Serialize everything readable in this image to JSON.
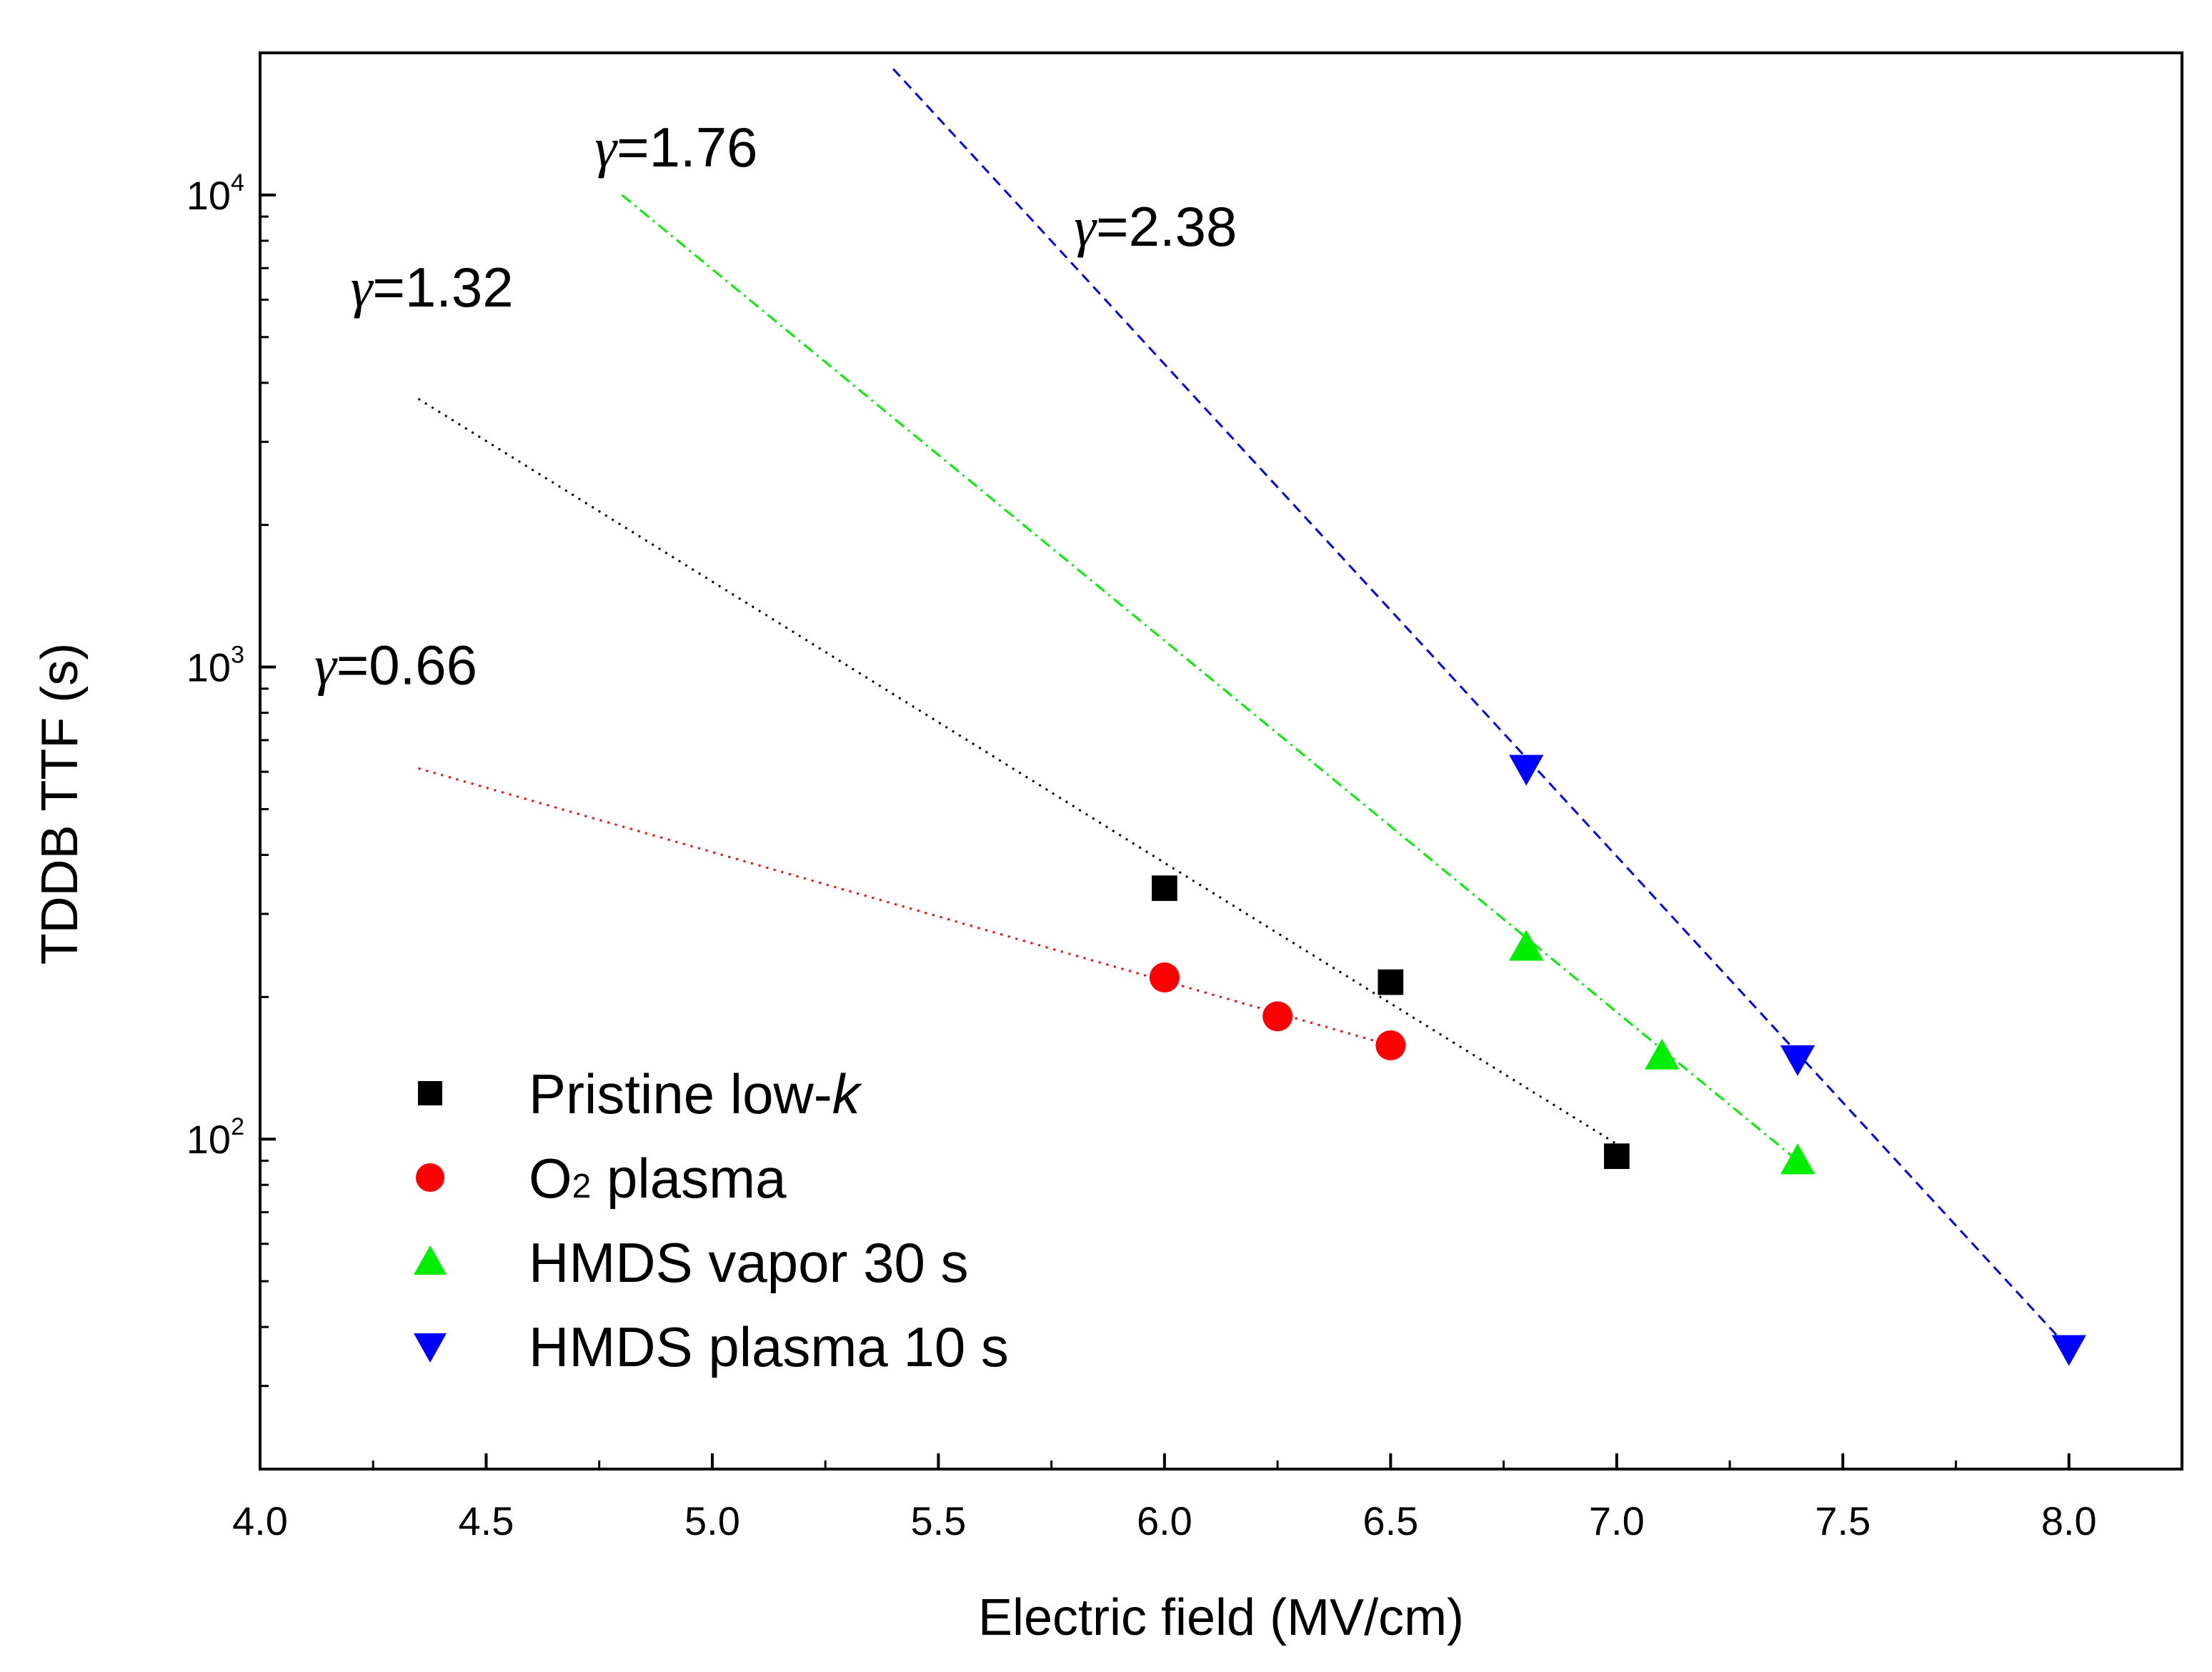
{
  "chart_data": {
    "type": "scatter",
    "title": "",
    "xlabel": "Electric field (MV/cm)",
    "ylabel": "TDDB TTF (s)",
    "xlim": [
      4.0,
      8.25
    ],
    "ylim": [
      20,
      20000
    ],
    "yscale": "log",
    "grid": false,
    "legend_position": "bottom-left",
    "x_ticks": [
      "4.0",
      "4.5",
      "5.0",
      "5.5",
      "6.0",
      "6.5",
      "7.0",
      "7.5",
      "8.0"
    ],
    "y_ticks": [
      {
        "value": 100,
        "base": "10",
        "exp": "2"
      },
      {
        "value": 1000,
        "base": "10",
        "exp": "3"
      },
      {
        "value": 10000,
        "base": "10",
        "exp": "4"
      }
    ],
    "series": [
      {
        "name": "Pristine low-",
        "name_italic": "k",
        "marker": "square",
        "color": "#000000",
        "line_style": "dotted",
        "x": [
          6.0,
          6.5,
          7.0
        ],
        "y": [
          340,
          215,
          92
        ],
        "fit": {
          "x": [
            4.35,
            7.02
          ],
          "y": [
            3700,
            95
          ]
        },
        "annotation": {
          "symbol": "γ",
          "text": "=1.32",
          "at_x": 4.2,
          "at_y": 5800
        }
      },
      {
        "name": "O",
        "name_sub": "2",
        "name_rest": " plasma",
        "marker": "circle",
        "color": "#ff0000",
        "line_style": "dotted",
        "x": [
          6.0,
          6.25,
          6.5
        ],
        "y": [
          220,
          182,
          158
        ],
        "fit": {
          "x": [
            4.35,
            6.5
          ],
          "y": [
            610,
            158
          ]
        },
        "annotation": {
          "symbol": "γ",
          "text": "=0.66",
          "at_x": 4.12,
          "at_y": 920
        }
      },
      {
        "name": "HMDS vapor 30 s",
        "marker": "triangle-up",
        "color": "#00ee00",
        "line_style": "dashdot",
        "x": [
          6.8,
          7.1,
          7.4
        ],
        "y": [
          255,
          150,
          90
        ],
        "fit": {
          "x": [
            4.8,
            7.4
          ],
          "y": [
            10000,
            90
          ]
        },
        "annotation": {
          "symbol": "γ",
          "text": "=1.76",
          "at_x": 4.74,
          "at_y": 11500
        }
      },
      {
        "name": "HMDS plasma 10 s",
        "marker": "triangle-down",
        "color": "#0000ff",
        "line_style": "dashed",
        "x": [
          6.8,
          7.4,
          8.0
        ],
        "y": [
          610,
          148,
          36
        ],
        "fit": {
          "x": [
            5.4,
            8.0
          ],
          "y": [
            18500,
            36
          ]
        },
        "annotation": {
          "symbol": "γ",
          "text": "=2.38",
          "at_x": 5.8,
          "at_y": 7800
        }
      }
    ]
  }
}
